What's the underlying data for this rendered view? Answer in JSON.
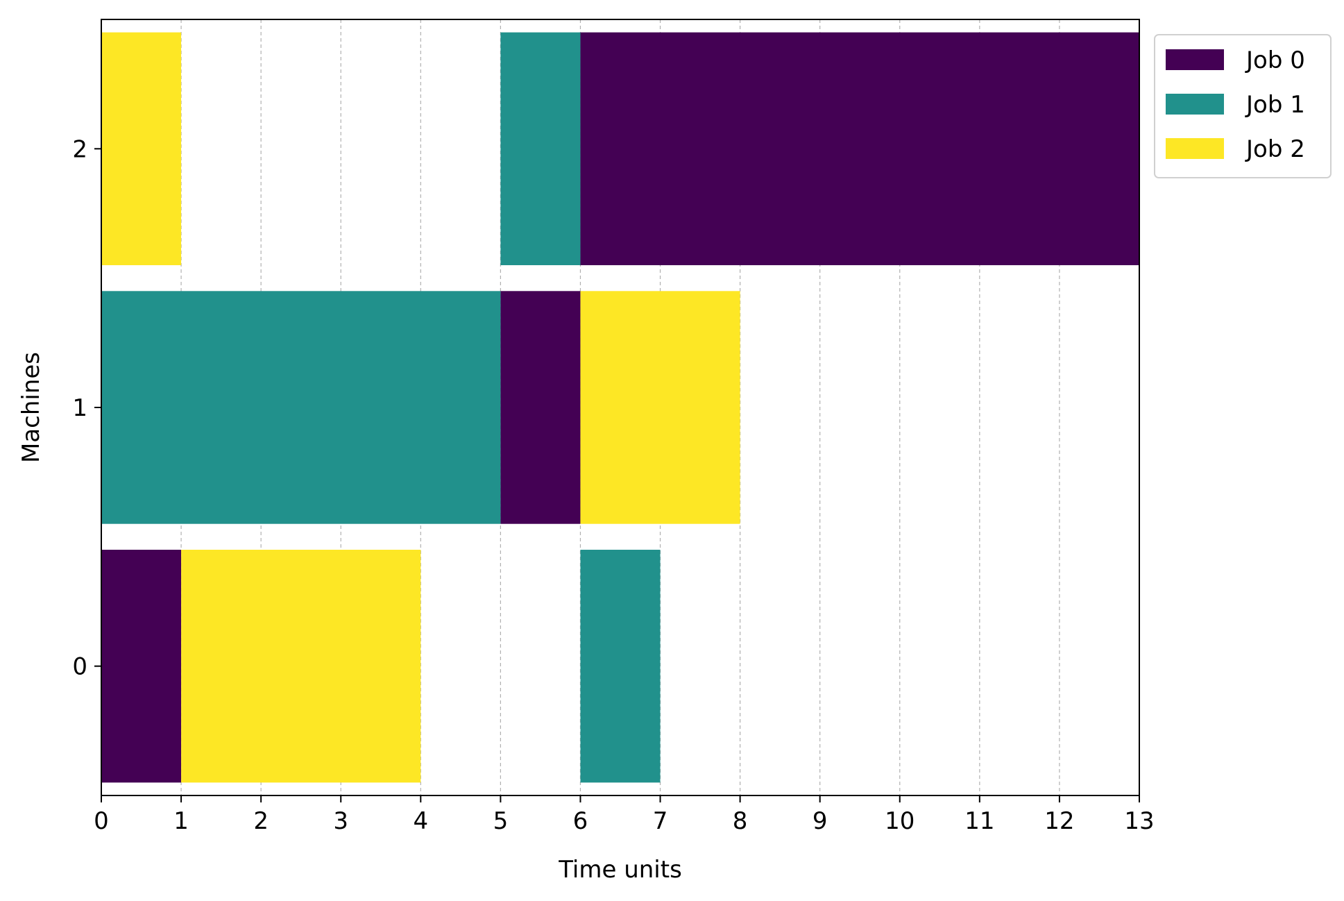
{
  "chart_data": {
    "type": "gantt",
    "xlabel": "Time units",
    "ylabel": "Machines",
    "xlim": [
      0,
      13
    ],
    "ylim": [
      -0.5,
      2.5
    ],
    "x_ticks": [
      "0",
      "1",
      "2",
      "3",
      "4",
      "5",
      "6",
      "7",
      "8",
      "9",
      "10",
      "11",
      "12",
      "13"
    ],
    "y_ticks": [
      "0",
      "1",
      "2"
    ],
    "grid": "x, dashed",
    "legend_position": "upper-right, outside plot",
    "series": [
      {
        "name": "Job 0",
        "color": "#440154",
        "tasks": [
          {
            "machine": 0,
            "start": 0,
            "end": 1
          },
          {
            "machine": 1,
            "start": 5,
            "end": 6
          },
          {
            "machine": 2,
            "start": 6,
            "end": 13
          }
        ]
      },
      {
        "name": "Job 1",
        "color": "#21918c",
        "tasks": [
          {
            "machine": 1,
            "start": 0,
            "end": 5
          },
          {
            "machine": 2,
            "start": 5,
            "end": 6
          },
          {
            "machine": 0,
            "start": 6,
            "end": 7
          }
        ]
      },
      {
        "name": "Job 2",
        "color": "#fde725",
        "tasks": [
          {
            "machine": 2,
            "start": 0,
            "end": 1
          },
          {
            "machine": 0,
            "start": 1,
            "end": 4
          },
          {
            "machine": 1,
            "start": 6,
            "end": 8
          }
        ]
      }
    ]
  }
}
